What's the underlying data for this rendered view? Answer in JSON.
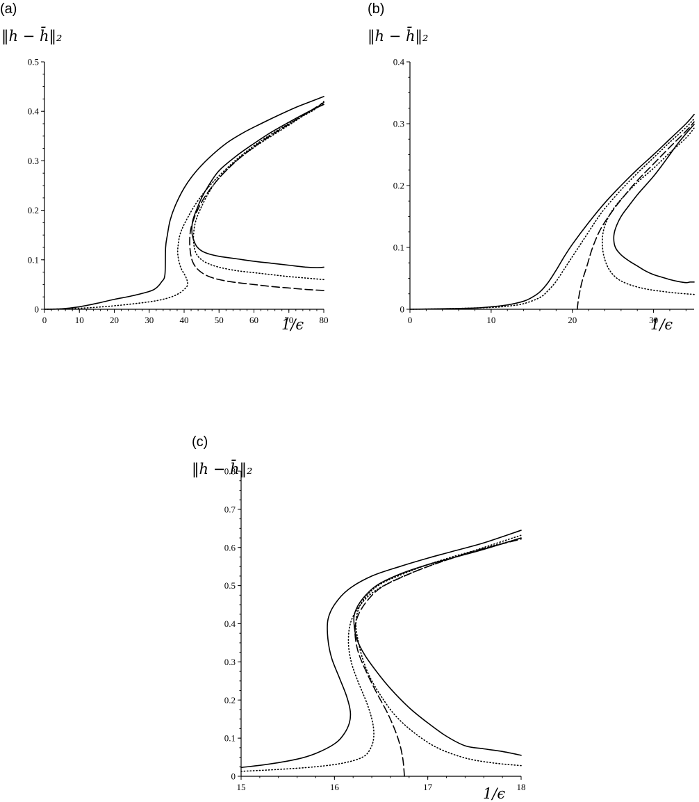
{
  "chart_data": [
    {
      "panel": "(a)",
      "type": "line",
      "ylabel": "‖h − h̄‖₂",
      "xlabel": "1/ϵ",
      "xlim": [
        0,
        80
      ],
      "ylim": [
        0,
        0.5
      ],
      "xticks": [
        0,
        10,
        20,
        30,
        40,
        50,
        60,
        70,
        80
      ],
      "yticks": [
        0,
        0.1,
        0.2,
        0.3,
        0.4,
        0.5
      ],
      "series": [
        {
          "style": "solid",
          "x": [
            0,
            5,
            10,
            15,
            20,
            25,
            30,
            32,
            33.5,
            34.5,
            34.7,
            35.2,
            36,
            37.5,
            40,
            43,
            47,
            52,
            57,
            62,
            67,
            72,
            76,
            80
          ],
          "y": [
            0,
            0.001,
            0.005,
            0.012,
            0.02,
            0.027,
            0.036,
            0.043,
            0.055,
            0.07,
            0.125,
            0.15,
            0.18,
            0.21,
            0.245,
            0.275,
            0.305,
            0.335,
            0.357,
            0.375,
            0.392,
            0.408,
            0.419,
            0.43
          ]
        },
        {
          "style": "solid",
          "x": [
            80,
            78,
            75,
            70,
            65,
            60,
            55,
            50,
            47,
            45,
            43.5,
            42.5,
            42.2,
            42.5,
            43.5,
            45,
            47,
            50,
            55,
            60,
            65,
            70,
            75,
            80
          ],
          "y": [
            0.085,
            0.084,
            0.085,
            0.089,
            0.093,
            0.097,
            0.102,
            0.107,
            0.112,
            0.118,
            0.128,
            0.145,
            0.16,
            0.18,
            0.2,
            0.225,
            0.25,
            0.28,
            0.31,
            0.335,
            0.358,
            0.378,
            0.397,
            0.414
          ]
        },
        {
          "style": "dotted",
          "x": [
            0,
            10,
            20,
            30,
            35,
            38,
            40,
            41,
            40.5,
            39,
            38.2,
            38.3,
            39,
            41,
            44,
            48,
            53,
            58,
            63,
            68,
            73,
            77,
            80
          ],
          "y": [
            0,
            0.002,
            0.007,
            0.015,
            0.022,
            0.03,
            0.04,
            0.05,
            0.065,
            0.085,
            0.11,
            0.13,
            0.155,
            0.185,
            0.22,
            0.255,
            0.29,
            0.32,
            0.345,
            0.367,
            0.387,
            0.402,
            0.42
          ]
        },
        {
          "style": "dotted",
          "x": [
            80,
            75,
            70,
            65,
            60,
            55,
            50,
            47,
            45,
            43.5,
            42.8,
            42.7,
            43.2,
            44.5,
            47,
            50,
            55,
            60,
            65,
            70,
            75,
            80
          ],
          "y": [
            0.06,
            0.063,
            0.066,
            0.07,
            0.074,
            0.078,
            0.085,
            0.092,
            0.1,
            0.112,
            0.13,
            0.15,
            0.175,
            0.2,
            0.235,
            0.265,
            0.3,
            0.327,
            0.35,
            0.372,
            0.395,
            0.417
          ]
        },
        {
          "style": "dashed",
          "x": [
            80,
            75,
            70,
            65,
            60,
            55,
            50,
            46.5,
            44,
            42.5,
            41.8,
            41.6,
            42,
            43.5,
            46,
            50,
            55,
            60,
            65,
            70,
            75,
            80
          ],
          "y": [
            0.038,
            0.04,
            0.043,
            0.046,
            0.05,
            0.054,
            0.06,
            0.068,
            0.08,
            0.095,
            0.115,
            0.14,
            0.165,
            0.195,
            0.228,
            0.265,
            0.3,
            0.328,
            0.352,
            0.374,
            0.396,
            0.418
          ]
        }
      ]
    },
    {
      "panel": "(b)",
      "type": "line",
      "ylabel": "‖h − h̄‖₂",
      "xlabel": "1/ϵ",
      "xlim": [
        0,
        35
      ],
      "ylim": [
        0,
        0.4
      ],
      "xticks": [
        0,
        10,
        20,
        30
      ],
      "yticks": [
        0,
        0.1,
        0.2,
        0.3,
        0.4
      ],
      "series": [
        {
          "style": "solid",
          "x": [
            0,
            5,
            8,
            10,
            12,
            14,
            15,
            16,
            17,
            18,
            19,
            20,
            22,
            24,
            26,
            28,
            30,
            32,
            34,
            35
          ],
          "y": [
            0,
            0.001,
            0.002,
            0.004,
            0.007,
            0.013,
            0.019,
            0.028,
            0.043,
            0.063,
            0.085,
            0.105,
            0.14,
            0.172,
            0.2,
            0.226,
            0.25,
            0.275,
            0.3,
            0.315
          ]
        },
        {
          "style": "solid",
          "x": [
            35,
            34.5,
            34,
            33,
            32,
            31,
            30,
            29,
            28,
            27,
            26,
            25.3,
            25.1,
            25.3,
            26,
            27,
            28,
            29,
            30,
            31,
            32,
            33,
            34,
            35
          ],
          "y": [
            0.044,
            0.044,
            0.043,
            0.045,
            0.048,
            0.052,
            0.056,
            0.062,
            0.07,
            0.078,
            0.088,
            0.1,
            0.115,
            0.13,
            0.15,
            0.168,
            0.185,
            0.2,
            0.215,
            0.232,
            0.25,
            0.268,
            0.284,
            0.299
          ]
        },
        {
          "style": "dotted",
          "x": [
            0,
            5,
            10,
            12,
            14,
            16,
            17,
            18,
            19,
            20,
            21,
            22,
            23,
            24,
            26,
            28,
            30,
            32,
            34,
            35
          ],
          "y": [
            0,
            0.001,
            0.003,
            0.005,
            0.009,
            0.019,
            0.03,
            0.045,
            0.065,
            0.085,
            0.105,
            0.125,
            0.145,
            0.163,
            0.193,
            0.22,
            0.245,
            0.27,
            0.294,
            0.308
          ]
        },
        {
          "style": "dotted",
          "x": [
            35,
            33,
            31,
            29,
            27,
            25.5,
            24.5,
            23.9,
            23.7,
            23.8,
            24.3,
            25.2,
            26.5,
            28,
            30,
            32,
            34,
            35
          ],
          "y": [
            0.024,
            0.026,
            0.029,
            0.033,
            0.04,
            0.05,
            0.065,
            0.085,
            0.105,
            0.125,
            0.145,
            0.165,
            0.185,
            0.205,
            0.228,
            0.253,
            0.277,
            0.293
          ]
        },
        {
          "style": "dashed",
          "x": [
            20.6,
            20.8,
            21.2,
            21.8,
            22.5,
            23.5,
            25,
            26.5,
            28,
            30,
            32,
            34,
            35
          ],
          "y": [
            0,
            0.02,
            0.045,
            0.07,
            0.1,
            0.13,
            0.16,
            0.185,
            0.208,
            0.235,
            0.262,
            0.288,
            0.303
          ]
        }
      ]
    },
    {
      "panel": "(c)",
      "type": "line",
      "ylabel": "‖h − h̄‖₂",
      "xlabel": "1/ϵ",
      "xlim": [
        15,
        18
      ],
      "ylim": [
        0,
        0.8
      ],
      "xticks": [
        15,
        16,
        17,
        18
      ],
      "yticks": [
        0,
        0.1,
        0.2,
        0.3,
        0.4,
        0.5,
        0.6,
        0.7,
        0.8
      ],
      "series": [
        {
          "style": "solid",
          "x": [
            15,
            15.3,
            15.6,
            15.8,
            16.0,
            16.1,
            16.16,
            16.17,
            16.13,
            16.05,
            15.97,
            15.93,
            15.93,
            16.0,
            16.15,
            16.4,
            16.7,
            17.0,
            17.3,
            17.6,
            18
          ],
          "y": [
            0.023,
            0.032,
            0.045,
            0.06,
            0.085,
            0.11,
            0.14,
            0.17,
            0.21,
            0.26,
            0.31,
            0.36,
            0.41,
            0.45,
            0.49,
            0.525,
            0.55,
            0.572,
            0.592,
            0.612,
            0.645
          ]
        },
        {
          "style": "solid",
          "x": [
            18,
            17.8,
            17.6,
            17.4,
            17.2,
            17.0,
            16.8,
            16.6,
            16.45,
            16.32,
            16.24,
            16.21,
            16.22,
            16.3,
            16.45,
            16.7,
            17.0,
            17.3,
            17.6,
            18
          ],
          "y": [
            0.055,
            0.065,
            0.072,
            0.08,
            0.105,
            0.14,
            0.18,
            0.23,
            0.275,
            0.32,
            0.36,
            0.4,
            0.43,
            0.465,
            0.5,
            0.53,
            0.555,
            0.575,
            0.595,
            0.625
          ]
        },
        {
          "style": "dotted",
          "x": [
            15,
            15.4,
            15.8,
            16.1,
            16.3,
            16.38,
            16.42,
            16.41,
            16.35,
            16.25,
            16.18,
            16.15,
            16.17,
            16.25,
            16.4,
            16.65,
            17.0,
            17.3,
            17.6,
            18
          ],
          "y": [
            0.013,
            0.018,
            0.025,
            0.035,
            0.05,
            0.07,
            0.1,
            0.14,
            0.19,
            0.25,
            0.3,
            0.35,
            0.4,
            0.44,
            0.48,
            0.515,
            0.55,
            0.575,
            0.6,
            0.632
          ]
        },
        {
          "style": "dotted",
          "x": [
            18,
            17.7,
            17.4,
            17.1,
            16.85,
            16.65,
            16.5,
            16.38,
            16.3,
            16.25,
            16.23,
            16.26,
            16.35,
            16.5,
            16.75,
            17.0,
            17.3,
            17.6,
            18
          ],
          "y": [
            0.028,
            0.035,
            0.048,
            0.075,
            0.115,
            0.16,
            0.21,
            0.26,
            0.31,
            0.36,
            0.4,
            0.44,
            0.475,
            0.505,
            0.532,
            0.555,
            0.578,
            0.598,
            0.624
          ]
        },
        {
          "style": "dashed",
          "x": [
            16.75,
            16.73,
            16.68,
            16.58,
            16.45,
            16.33,
            16.25,
            16.22,
            16.25,
            16.35,
            16.5,
            16.75,
            17.0,
            17.3,
            17.6,
            18
          ],
          "y": [
            0,
            0.05,
            0.1,
            0.16,
            0.22,
            0.28,
            0.33,
            0.38,
            0.42,
            0.46,
            0.495,
            0.525,
            0.55,
            0.575,
            0.597,
            0.622
          ]
        }
      ]
    }
  ]
}
